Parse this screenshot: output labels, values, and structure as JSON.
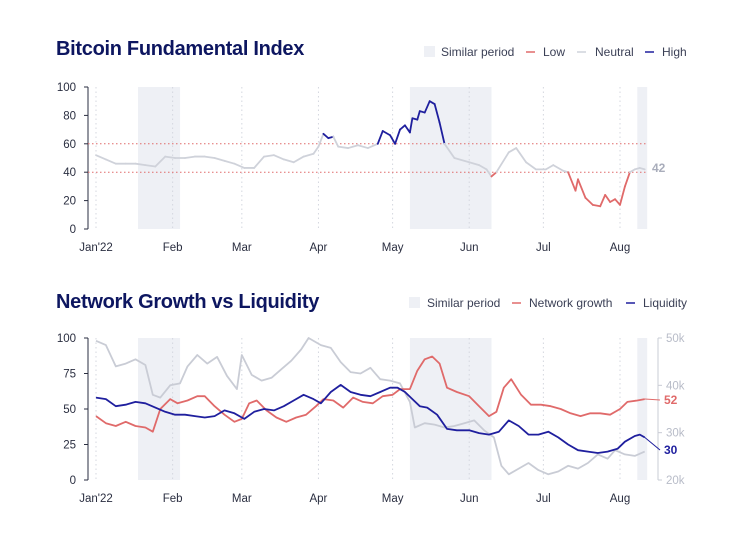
{
  "colors": {
    "high": "#1f1f9e",
    "low": "#e06a6a",
    "neutral": "#cfd2da",
    "shade": "#eef0f5",
    "title": "#0d1660",
    "price": "#c9ccd5",
    "threshold": "#e06a6a"
  },
  "chart_data": [
    {
      "type": "line",
      "title": "Bitcoin Fundamental Index",
      "legend": {
        "placement": "top-right",
        "items": [
          "Similar period",
          "Low",
          "Neutral",
          "High"
        ]
      },
      "ylim": [
        0,
        100
      ],
      "yticks": [
        "0",
        "20",
        "40",
        "60",
        "80",
        "100"
      ],
      "xticks": [
        {
          "date": "2022-01-01",
          "label": "Jan'22"
        },
        {
          "date": "2022-02-01",
          "label": "Feb"
        },
        {
          "date": "2022-03-01",
          "label": "Mar"
        },
        {
          "date": "2022-04-01",
          "label": "Apr"
        },
        {
          "date": "2022-05-01",
          "label": "May"
        },
        {
          "date": "2022-06-01",
          "label": "Jun"
        },
        {
          "date": "2022-07-01",
          "label": "Jul"
        },
        {
          "date": "2022-08-01",
          "label": "Aug"
        }
      ],
      "similar_periods": [
        [
          "2022-01-18",
          "2022-02-04"
        ],
        [
          "2022-05-08",
          "2022-06-10"
        ],
        [
          "2022-08-08",
          "2022-08-12"
        ]
      ],
      "thresholds": {
        "high": 60,
        "low": 40
      },
      "end_label": "42",
      "series": [
        {
          "x": [
            "2022-01-01",
            "2022-01-05",
            "2022-01-09",
            "2022-01-13",
            "2022-01-17",
            "2022-01-21",
            "2022-01-25",
            "2022-01-29",
            "2022-02-02",
            "2022-02-06",
            "2022-02-10",
            "2022-02-14",
            "2022-02-18",
            "2022-02-22",
            "2022-02-26",
            "2022-03-02",
            "2022-03-06",
            "2022-03-10",
            "2022-03-14",
            "2022-03-18",
            "2022-03-22",
            "2022-03-26",
            "2022-03-30",
            "2022-04-01",
            "2022-04-03",
            "2022-04-05",
            "2022-04-07",
            "2022-04-09",
            "2022-04-13",
            "2022-04-17",
            "2022-04-21",
            "2022-04-25",
            "2022-04-27",
            "2022-04-30",
            "2022-05-02",
            "2022-05-04",
            "2022-05-06",
            "2022-05-08",
            "2022-05-09",
            "2022-05-11",
            "2022-05-12",
            "2022-05-14",
            "2022-05-16",
            "2022-05-18",
            "2022-05-20",
            "2022-05-22",
            "2022-05-26",
            "2022-06-01",
            "2022-06-05",
            "2022-06-08",
            "2022-06-10",
            "2022-06-12",
            "2022-06-17",
            "2022-06-20",
            "2022-06-24",
            "2022-06-28",
            "2022-07-02",
            "2022-07-05",
            "2022-07-09",
            "2022-07-11",
            "2022-07-14",
            "2022-07-15",
            "2022-07-18",
            "2022-07-21",
            "2022-07-24",
            "2022-07-26",
            "2022-07-28",
            "2022-07-30",
            "2022-08-01",
            "2022-08-03",
            "2022-08-05",
            "2022-08-07",
            "2022-08-09",
            "2022-08-11"
          ],
          "y": [
            52,
            49,
            46,
            46,
            46,
            45,
            44,
            51,
            50,
            50,
            51,
            51,
            50,
            48,
            46,
            43,
            43,
            51,
            52,
            49,
            47,
            51,
            53,
            58,
            67,
            64,
            65,
            58,
            57,
            59,
            57,
            60,
            69,
            66,
            60,
            70,
            73,
            68,
            78,
            77,
            83,
            82,
            90,
            88,
            75,
            60,
            50,
            47,
            45,
            42,
            37,
            40,
            54,
            57,
            47,
            42,
            42,
            45,
            41,
            40,
            27,
            35,
            22,
            17,
            16,
            24,
            19,
            21,
            17,
            30,
            40,
            42,
            43,
            42
          ]
        }
      ]
    },
    {
      "type": "line",
      "title": "Network Growth vs Liquidity",
      "legend": {
        "placement": "top-right",
        "items": [
          "Similar period",
          "Network growth",
          "Liquidity"
        ]
      },
      "ylim": [
        0,
        100
      ],
      "yticks": [
        "0",
        "25",
        "50",
        "75",
        "100"
      ],
      "y2lim": [
        20,
        50
      ],
      "y2ticks": [
        "20k",
        "30k",
        "40k",
        "50k"
      ],
      "xticks": [
        {
          "date": "2022-01-01",
          "label": "Jan'22"
        },
        {
          "date": "2022-02-01",
          "label": "Feb"
        },
        {
          "date": "2022-03-01",
          "label": "Mar"
        },
        {
          "date": "2022-04-01",
          "label": "Apr"
        },
        {
          "date": "2022-05-01",
          "label": "May"
        },
        {
          "date": "2022-06-01",
          "label": "Jun"
        },
        {
          "date": "2022-07-01",
          "label": "Jul"
        },
        {
          "date": "2022-08-01",
          "label": "Aug"
        }
      ],
      "similar_periods": [
        [
          "2022-01-18",
          "2022-02-04"
        ],
        [
          "2022-05-08",
          "2022-06-10"
        ],
        [
          "2022-08-08",
          "2022-08-12"
        ]
      ],
      "series": [
        {
          "name": "Network growth",
          "axis": "left",
          "end_label": "52",
          "x": [
            "2022-01-01",
            "2022-01-05",
            "2022-01-09",
            "2022-01-13",
            "2022-01-17",
            "2022-01-21",
            "2022-01-24",
            "2022-01-27",
            "2022-01-31",
            "2022-02-03",
            "2022-02-07",
            "2022-02-11",
            "2022-02-14",
            "2022-02-18",
            "2022-02-22",
            "2022-02-26",
            "2022-03-01",
            "2022-03-04",
            "2022-03-07",
            "2022-03-11",
            "2022-03-15",
            "2022-03-19",
            "2022-03-23",
            "2022-03-27",
            "2022-03-31",
            "2022-04-03",
            "2022-04-07",
            "2022-04-11",
            "2022-04-15",
            "2022-04-19",
            "2022-04-23",
            "2022-04-27",
            "2022-05-01",
            "2022-05-04",
            "2022-05-08",
            "2022-05-11",
            "2022-05-14",
            "2022-05-17",
            "2022-05-20",
            "2022-05-23",
            "2022-05-27",
            "2022-06-01",
            "2022-06-05",
            "2022-06-09",
            "2022-06-12",
            "2022-06-15",
            "2022-06-18",
            "2022-06-22",
            "2022-06-26",
            "2022-06-30",
            "2022-07-04",
            "2022-07-08",
            "2022-07-12",
            "2022-07-16",
            "2022-07-20",
            "2022-07-24",
            "2022-07-28",
            "2022-08-01",
            "2022-08-04",
            "2022-08-08",
            "2022-08-11"
          ],
          "y": [
            45,
            40,
            38,
            41,
            38,
            37,
            34,
            50,
            57,
            54,
            56,
            59,
            59,
            52,
            46,
            41,
            43,
            54,
            56,
            49,
            44,
            41,
            44,
            46,
            52,
            57,
            56,
            51,
            58,
            55,
            54,
            59,
            60,
            64,
            64,
            77,
            85,
            87,
            82,
            65,
            62,
            59,
            52,
            45,
            48,
            65,
            71,
            60,
            53,
            53,
            52,
            50,
            47,
            45,
            47,
            47,
            46,
            50,
            55,
            56,
            57
          ]
        },
        {
          "name": "Liquidity",
          "axis": "left",
          "end_label": "30",
          "x": [
            "2022-01-01",
            "2022-01-05",
            "2022-01-09",
            "2022-01-13",
            "2022-01-17",
            "2022-01-21",
            "2022-01-25",
            "2022-01-29",
            "2022-02-02",
            "2022-02-06",
            "2022-02-10",
            "2022-02-14",
            "2022-02-18",
            "2022-02-22",
            "2022-02-26",
            "2022-03-02",
            "2022-03-06",
            "2022-03-10",
            "2022-03-14",
            "2022-03-18",
            "2022-03-22",
            "2022-03-26",
            "2022-03-30",
            "2022-04-02",
            "2022-04-06",
            "2022-04-10",
            "2022-04-14",
            "2022-04-18",
            "2022-04-22",
            "2022-04-26",
            "2022-04-30",
            "2022-05-03",
            "2022-05-06",
            "2022-05-09",
            "2022-05-12",
            "2022-05-15",
            "2022-05-19",
            "2022-05-23",
            "2022-05-27",
            "2022-06-01",
            "2022-06-05",
            "2022-06-09",
            "2022-06-13",
            "2022-06-17",
            "2022-06-21",
            "2022-06-25",
            "2022-06-29",
            "2022-07-03",
            "2022-07-07",
            "2022-07-11",
            "2022-07-15",
            "2022-07-19",
            "2022-07-23",
            "2022-07-27",
            "2022-07-31",
            "2022-08-03",
            "2022-08-07",
            "2022-08-09",
            "2022-08-11"
          ],
          "y": [
            58,
            57,
            52,
            53,
            55,
            54,
            51,
            48,
            46,
            46,
            45,
            44,
            45,
            49,
            47,
            43,
            48,
            50,
            49,
            52,
            56,
            60,
            57,
            54,
            62,
            67,
            62,
            60,
            59,
            62,
            65,
            65,
            62,
            57,
            52,
            51,
            46,
            36,
            35,
            35,
            33,
            32,
            34,
            42,
            38,
            32,
            32,
            34,
            30,
            25,
            21,
            20,
            19,
            20,
            22,
            27,
            31,
            32,
            30
          ]
        },
        {
          "axis": "right",
          "x": [
            "2022-01-01",
            "2022-01-05",
            "2022-01-09",
            "2022-01-13",
            "2022-01-17",
            "2022-01-21",
            "2022-01-24",
            "2022-01-27",
            "2022-01-31",
            "2022-02-04",
            "2022-02-07",
            "2022-02-11",
            "2022-02-15",
            "2022-02-19",
            "2022-02-23",
            "2022-02-27",
            "2022-03-01",
            "2022-03-05",
            "2022-03-09",
            "2022-03-13",
            "2022-03-17",
            "2022-03-21",
            "2022-03-25",
            "2022-03-28",
            "2022-04-02",
            "2022-04-06",
            "2022-04-10",
            "2022-04-14",
            "2022-04-18",
            "2022-04-22",
            "2022-04-26",
            "2022-04-30",
            "2022-05-04",
            "2022-05-08",
            "2022-05-10",
            "2022-05-14",
            "2022-05-18",
            "2022-05-22",
            "2022-05-26",
            "2022-05-30",
            "2022-06-03",
            "2022-06-07",
            "2022-06-11",
            "2022-06-14",
            "2022-06-17",
            "2022-06-21",
            "2022-06-25",
            "2022-06-29",
            "2022-07-03",
            "2022-07-07",
            "2022-07-11",
            "2022-07-15",
            "2022-07-19",
            "2022-07-23",
            "2022-07-27",
            "2022-07-30",
            "2022-08-03",
            "2022-08-07",
            "2022-08-11"
          ],
          "y": [
            49.4,
            48.5,
            44,
            44.6,
            45.5,
            44.3,
            38,
            37.4,
            40,
            40.4,
            44,
            46.4,
            44.6,
            46,
            42,
            39.2,
            46.4,
            42.2,
            41,
            41.6,
            43.4,
            45.2,
            47.6,
            50,
            48.5,
            47.9,
            44.9,
            42.8,
            42.5,
            43.7,
            41.3,
            41,
            40.4,
            36.5,
            31.1,
            32,
            31.7,
            31.1,
            31.4,
            32,
            32.6,
            30.5,
            29,
            23,
            21.2,
            22.4,
            23.6,
            22.1,
            21.2,
            21.8,
            23,
            22.4,
            23.6,
            25.4,
            24.5,
            26.3,
            25.4,
            25.1,
            26
          ]
        }
      ]
    }
  ]
}
